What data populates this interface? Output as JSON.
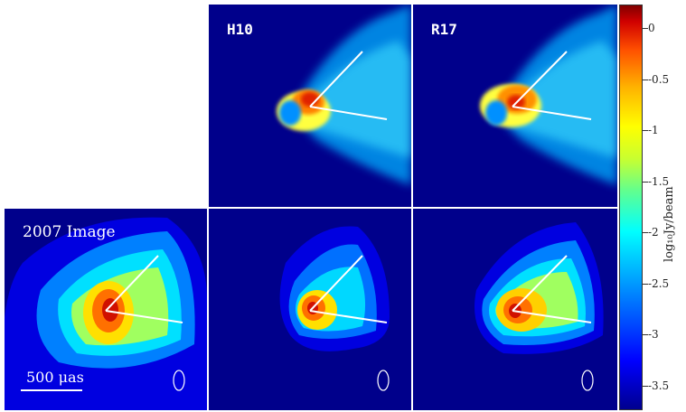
{
  "panels": {
    "h10_label": "H10",
    "r17_label": "R17",
    "image_label": "2007 Image",
    "scale_label": "500 μas"
  },
  "colorbar": {
    "label": "log₁₀Jy/beam",
    "ticks": [
      "0",
      "-0.5",
      "-1",
      "-1.5",
      "-2",
      "-2.5",
      "-3",
      "-3.5"
    ]
  },
  "colors": {
    "background": "#00008b",
    "overlay_lines": "#ffffff"
  }
}
